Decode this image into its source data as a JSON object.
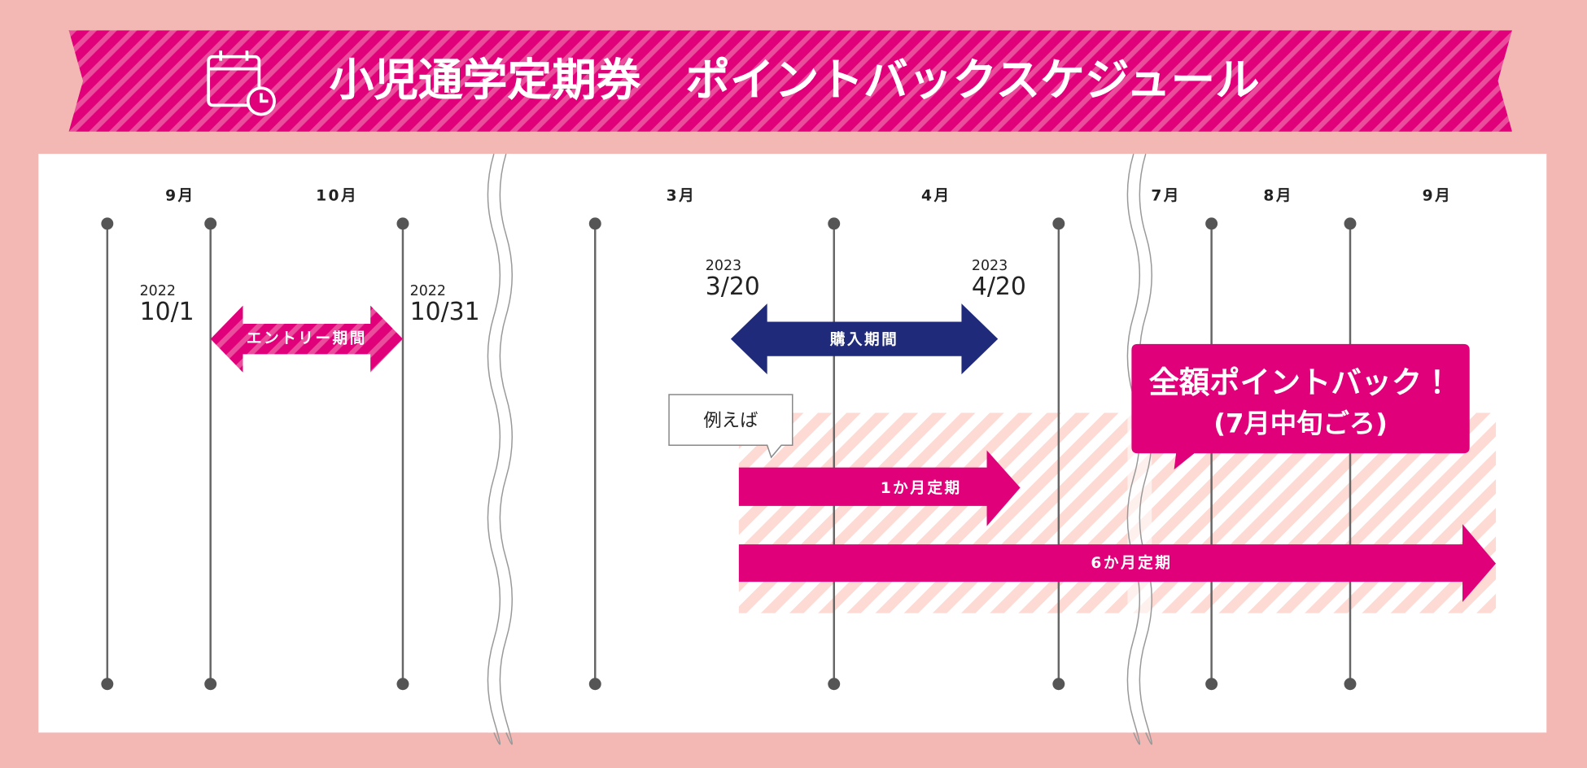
{
  "header": {
    "title": "小児通学定期券　ポイントバックスケジュール"
  },
  "months": [
    "9月",
    "10月",
    "3月",
    "4月",
    "7月",
    "8月",
    "9月"
  ],
  "dates": [
    {
      "year": "2022",
      "day": "10/1"
    },
    {
      "year": "2022",
      "day": "10/31"
    },
    {
      "year": "2023",
      "day": "3/20"
    },
    {
      "year": "2023",
      "day": "4/20"
    }
  ],
  "arrows": {
    "entry": "エントリー期間",
    "purchase": "購入期間",
    "one_month": "1か月定期",
    "six_month": "6か月定期"
  },
  "example": "例えば",
  "callout": {
    "line1": "全額ポイントバック！",
    "line2": "(7月中旬ごろ)"
  }
}
